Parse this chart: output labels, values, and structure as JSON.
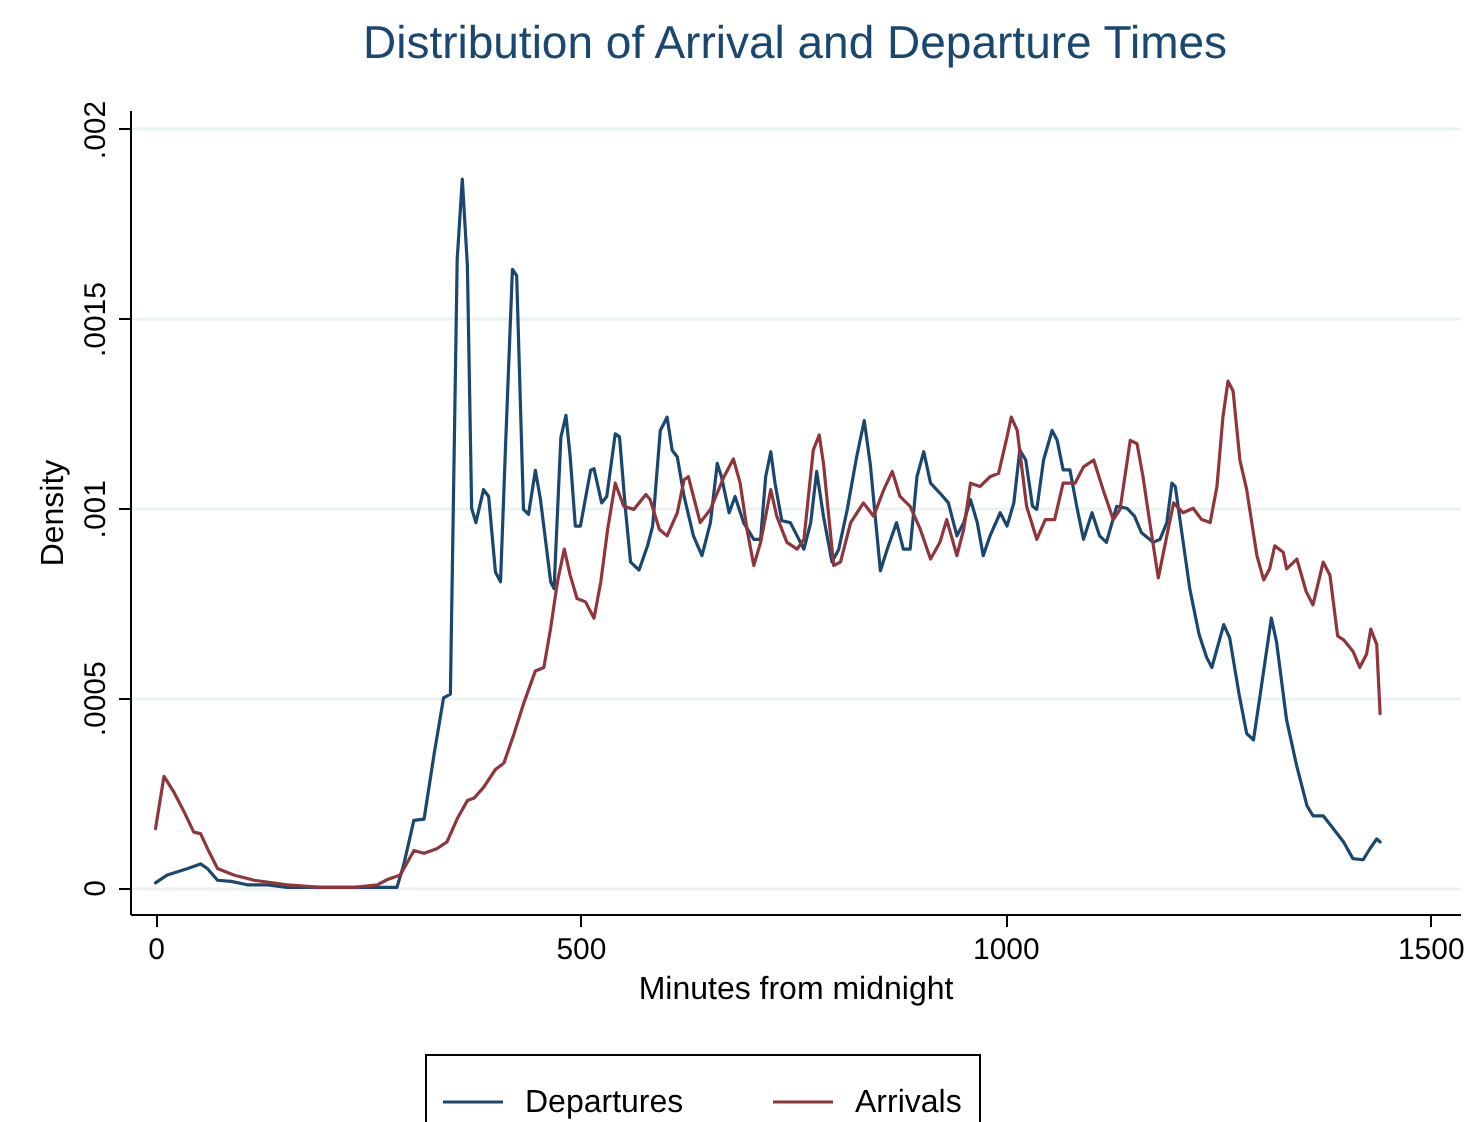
{
  "chart_data": {
    "type": "line",
    "title": "Distribution of Arrival and Departure Times",
    "xlabel": "Minutes from midnight",
    "ylabel": "Density",
    "xlim": [
      -30,
      1535
    ],
    "ylim": [
      -7e-05,
      0.00205
    ],
    "xticks": [
      0,
      500,
      1000,
      1500
    ],
    "yticks": [
      {
        "value": 0,
        "label": "0"
      },
      {
        "value": 0.0005,
        "label": ".0005"
      },
      {
        "value": 0.001,
        "label": ".001"
      },
      {
        "value": 0.0015,
        "label": ".0015"
      },
      {
        "value": 0.002,
        "label": ".002"
      }
    ],
    "grid": "y",
    "legend": "bottom",
    "line_style": "solid",
    "series": [
      {
        "name": "Departures",
        "color": "#1a476f",
        "x": [
          0,
          14,
          38,
          53,
          61,
          73,
          89,
          108,
          132,
          155,
          194,
          241,
          284,
          292,
          304,
          316,
          328,
          339,
          347,
          355,
          361,
          367,
          372,
          377,
          386,
          392,
          400,
          406,
          412,
          420,
          425,
          433,
          439,
          447,
          453,
          465,
          469,
          477,
          483,
          488,
          494,
          500,
          512,
          516,
          525,
          531,
          541,
          546,
          553,
          559,
          569,
          579,
          585,
          594,
          602,
          608,
          614,
          622,
          633,
          643,
          653,
          661,
          666,
          675,
          682,
          692,
          704,
          712,
          718,
          724,
          729,
          737,
          747,
          755,
          763,
          771,
          778,
          786,
          796,
          804,
          814,
          825,
          834,
          841,
          853,
          861,
          872,
          880,
          888,
          896,
          904,
          912,
          923,
          933,
          943,
          951,
          959,
          967,
          974,
          982,
          994,
          1002,
          1010,
          1017,
          1024,
          1032,
          1037,
          1045,
          1055,
          1061,
          1068,
          1076,
          1084,
          1092,
          1102,
          1111,
          1119,
          1131,
          1143,
          1152,
          1160,
          1174,
          1182,
          1190,
          1196,
          1200,
          1206,
          1217,
          1228,
          1237,
          1243,
          1257,
          1264,
          1275,
          1284,
          1292,
          1300,
          1313,
          1319,
          1331,
          1343,
          1355,
          1362,
          1374,
          1386,
          1398,
          1409,
          1421,
          1429,
          1437,
          1441
        ],
        "values": [
          1.2e-05,
          3.3e-05,
          5e-05,
          6.2e-05,
          5e-05,
          1.9e-05,
          1.6e-05,
          7e-06,
          7e-06,
          0,
          0,
          0,
          0,
          5.9e-05,
          0.000177,
          0.00018,
          0.000354,
          0.0005,
          0.00051,
          0.001656,
          0.001868,
          0.00164,
          0.001,
          0.000962,
          0.001049,
          0.001031,
          0.000832,
          0.000806,
          0.00117,
          0.00163,
          0.001613,
          0.000997,
          0.000984,
          0.0011,
          0.001023,
          0.000806,
          0.000788,
          0.001187,
          0.001245,
          0.001135,
          0.000953,
          0.000953,
          0.0011,
          0.001104,
          0.001014,
          0.001031,
          0.001196,
          0.001188,
          0.000997,
          0.000858,
          0.000837,
          0.000901,
          0.000953,
          0.001205,
          0.00124,
          0.001153,
          0.001135,
          0.001031,
          0.000927,
          0.000875,
          0.000962,
          0.001118,
          0.001083,
          0.000988,
          0.001031,
          0.000962,
          0.000918,
          0.000918,
          0.001083,
          0.001149,
          0.001066,
          0.000967,
          0.000962,
          0.000927,
          0.000892,
          0.000962,
          0.001097,
          0.000979,
          0.000858,
          0.000892,
          0.000997,
          0.001135,
          0.001231,
          0.001118,
          0.000835,
          0.000892,
          0.000962,
          0.000892,
          0.000892,
          0.001083,
          0.001149,
          0.001066,
          0.00104,
          0.001014,
          0.000927,
          0.000962,
          0.001023,
          0.000962,
          0.000875,
          0.000927,
          0.000988,
          0.000953,
          0.001014,
          0.001153,
          0.001127,
          0.001005,
          0.000997,
          0.001127,
          0.001205,
          0.001179,
          0.001101,
          0.001101,
          0.001005,
          0.000918,
          0.000988,
          0.000927,
          0.00091,
          0.001005,
          0.001,
          0.000979,
          0.000936,
          0.00091,
          0.000918,
          0.000962,
          0.001066,
          0.001057,
          0.000962,
          0.000788,
          0.000667,
          0.000606,
          0.00058,
          0.000693,
          0.000658,
          0.00051,
          0.000406,
          0.000389,
          0.00051,
          0.00071,
          0.000649,
          0.000441,
          0.000319,
          0.000215,
          0.000189,
          0.000189,
          0.000155,
          0.00012,
          7.6e-05,
          7.3e-05,
          0.000102,
          0.000128,
          0.00012
        ]
      },
      {
        "name": "Arrivals",
        "color": "#90353b",
        "x": [
          0,
          10,
          22,
          34,
          45,
          53,
          63,
          73,
          92,
          116,
          155,
          194,
          234,
          261,
          273,
          288,
          304,
          316,
          331,
          343,
          355,
          367,
          375,
          386,
          400,
          410,
          422,
          433,
          447,
          457,
          465,
          473,
          481,
          488,
          496,
          506,
          516,
          524,
          532,
          541,
          551,
          563,
          577,
          582,
          593,
          602,
          614,
          622,
          627,
          641,
          653,
          669,
          680,
          688,
          696,
          704,
          712,
          724,
          731,
          743,
          755,
          763,
          774,
          781,
          786,
          798,
          806,
          818,
          833,
          845,
          857,
          867,
          876,
          888,
          900,
          912,
          923,
          931,
          943,
          951,
          959,
          970,
          982,
          992,
          1002,
          1007,
          1014,
          1025,
          1037,
          1047,
          1058,
          1068,
          1082,
          1092,
          1104,
          1115,
          1127,
          1135,
          1147,
          1155,
          1162,
          1170,
          1180,
          1190,
          1198,
          1209,
          1221,
          1231,
          1241,
          1249,
          1256,
          1262,
          1268,
          1276,
          1284,
          1296,
          1304,
          1311,
          1317,
          1327,
          1331,
          1343,
          1354,
          1362,
          1374,
          1382,
          1391,
          1398,
          1409,
          1417,
          1425,
          1430,
          1437,
          1441
        ],
        "values": [
          0.000155,
          0.000293,
          0.00025,
          0.000198,
          0.000146,
          0.000142,
          9.4e-05,
          5e-05,
          3.3e-05,
          1.9e-05,
          7e-06,
          0,
          0,
          7e-06,
          2.1e-05,
          3.3e-05,
          9.7e-05,
          9e-05,
          0.000102,
          0.00012,
          0.000181,
          0.000229,
          0.000236,
          0.000264,
          0.000311,
          0.000328,
          0.000406,
          0.000484,
          0.000571,
          0.00058,
          0.000684,
          0.000806,
          0.000892,
          0.000823,
          0.000762,
          0.000753,
          0.00071,
          0.000806,
          0.000944,
          0.001066,
          0.001005,
          0.000997,
          0.001036,
          0.001023,
          0.000944,
          0.000927,
          0.000988,
          0.001075,
          0.001083,
          0.000962,
          0.000997,
          0.001083,
          0.00113,
          0.001066,
          0.000944,
          0.000849,
          0.00091,
          0.001049,
          0.000979,
          0.00091,
          0.000892,
          0.000918,
          0.001153,
          0.001193,
          0.001118,
          0.000849,
          0.000858,
          0.000962,
          0.001014,
          0.000979,
          0.001049,
          0.001097,
          0.001031,
          0.001005,
          0.000944,
          0.000866,
          0.00091,
          0.00097,
          0.000875,
          0.000944,
          0.001066,
          0.001057,
          0.001083,
          0.001092,
          0.001188,
          0.00124,
          0.001205,
          0.001005,
          0.000918,
          0.00097,
          0.00097,
          0.001066,
          0.001066,
          0.001109,
          0.001127,
          0.001049,
          0.00097,
          0.000997,
          0.001179,
          0.00117,
          0.001083,
          0.000962,
          0.000816,
          0.000927,
          0.001014,
          0.000988,
          0.001,
          0.00097,
          0.000962,
          0.001057,
          0.00124,
          0.001335,
          0.001309,
          0.001127,
          0.001049,
          0.000875,
          0.000811,
          0.00084,
          0.000901,
          0.000884,
          0.00084,
          0.000866,
          0.00078,
          0.000745,
          0.000858,
          0.000823,
          0.000663,
          0.000653,
          0.000623,
          0.00058,
          0.000615,
          0.000681,
          0.000641,
          0.000458
        ]
      }
    ]
  }
}
